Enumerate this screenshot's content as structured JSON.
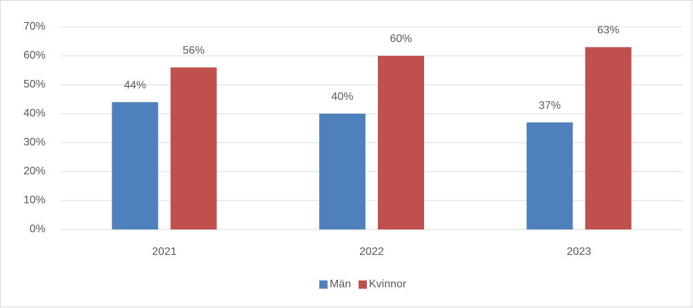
{
  "chart_data": {
    "type": "bar",
    "categories": [
      "2021",
      "2022",
      "2023"
    ],
    "series": [
      {
        "name": "Män",
        "color": "#4f81bd",
        "values": [
          44,
          40,
          37
        ],
        "value_labels": [
          "44%",
          "40%",
          "37%"
        ]
      },
      {
        "name": "Kvinnor",
        "color": "#c0504d",
        "values": [
          56,
          60,
          63
        ],
        "value_labels": [
          "56%",
          "60%",
          "63%"
        ]
      }
    ],
    "ylim": [
      0,
      70
    ],
    "yticks": [
      {
        "value": 0,
        "label": "0%"
      },
      {
        "value": 10,
        "label": "10%"
      },
      {
        "value": 20,
        "label": "20%"
      },
      {
        "value": 30,
        "label": "30%"
      },
      {
        "value": 40,
        "label": "40%"
      },
      {
        "value": 50,
        "label": "50%"
      },
      {
        "value": 60,
        "label": "60%"
      },
      {
        "value": 70,
        "label": "70%"
      }
    ],
    "grid": true,
    "legend": "bottom"
  }
}
